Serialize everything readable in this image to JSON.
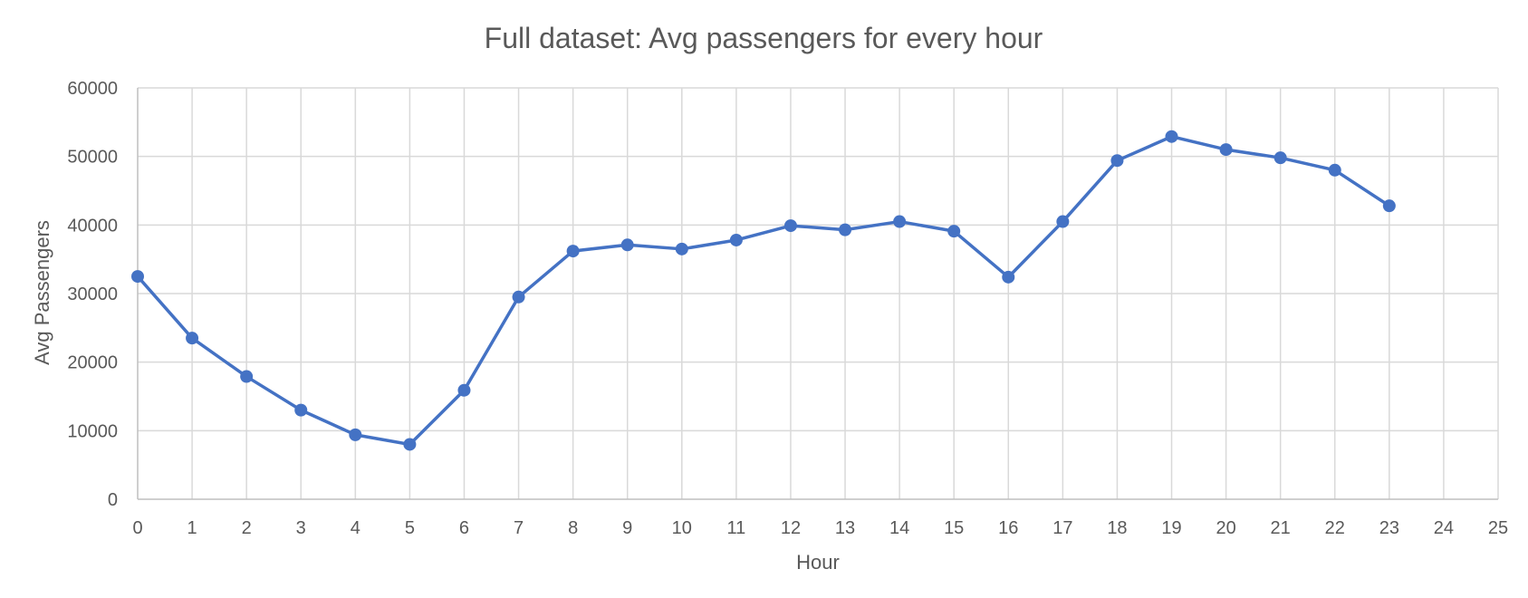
{
  "chart_data": {
    "type": "line",
    "title": "Full dataset: Avg passengers for every hour",
    "xlabel": "Hour",
    "ylabel": "Avg Passengers",
    "xlim": [
      0,
      25
    ],
    "ylim": [
      0,
      60000
    ],
    "x_ticks": [
      0,
      1,
      2,
      3,
      4,
      5,
      6,
      7,
      8,
      9,
      10,
      11,
      12,
      13,
      14,
      15,
      16,
      17,
      18,
      19,
      20,
      21,
      22,
      23,
      24,
      25
    ],
    "y_ticks": [
      0,
      10000,
      20000,
      30000,
      40000,
      50000,
      60000
    ],
    "grid": "on",
    "legend": "none",
    "marker": "circle",
    "series": [
      {
        "color": "#4472C4",
        "x": [
          0,
          1,
          2,
          3,
          4,
          5,
          6,
          7,
          8,
          9,
          10,
          11,
          12,
          13,
          14,
          15,
          16,
          17,
          18,
          19,
          20,
          21,
          22,
          23
        ],
        "values": [
          32500,
          23500,
          17900,
          13000,
          9400,
          8000,
          15900,
          29500,
          36200,
          37100,
          36500,
          37800,
          39900,
          39300,
          40500,
          39100,
          32400,
          40500,
          49400,
          52900,
          51000,
          49800,
          48000,
          42800
        ]
      }
    ]
  }
}
